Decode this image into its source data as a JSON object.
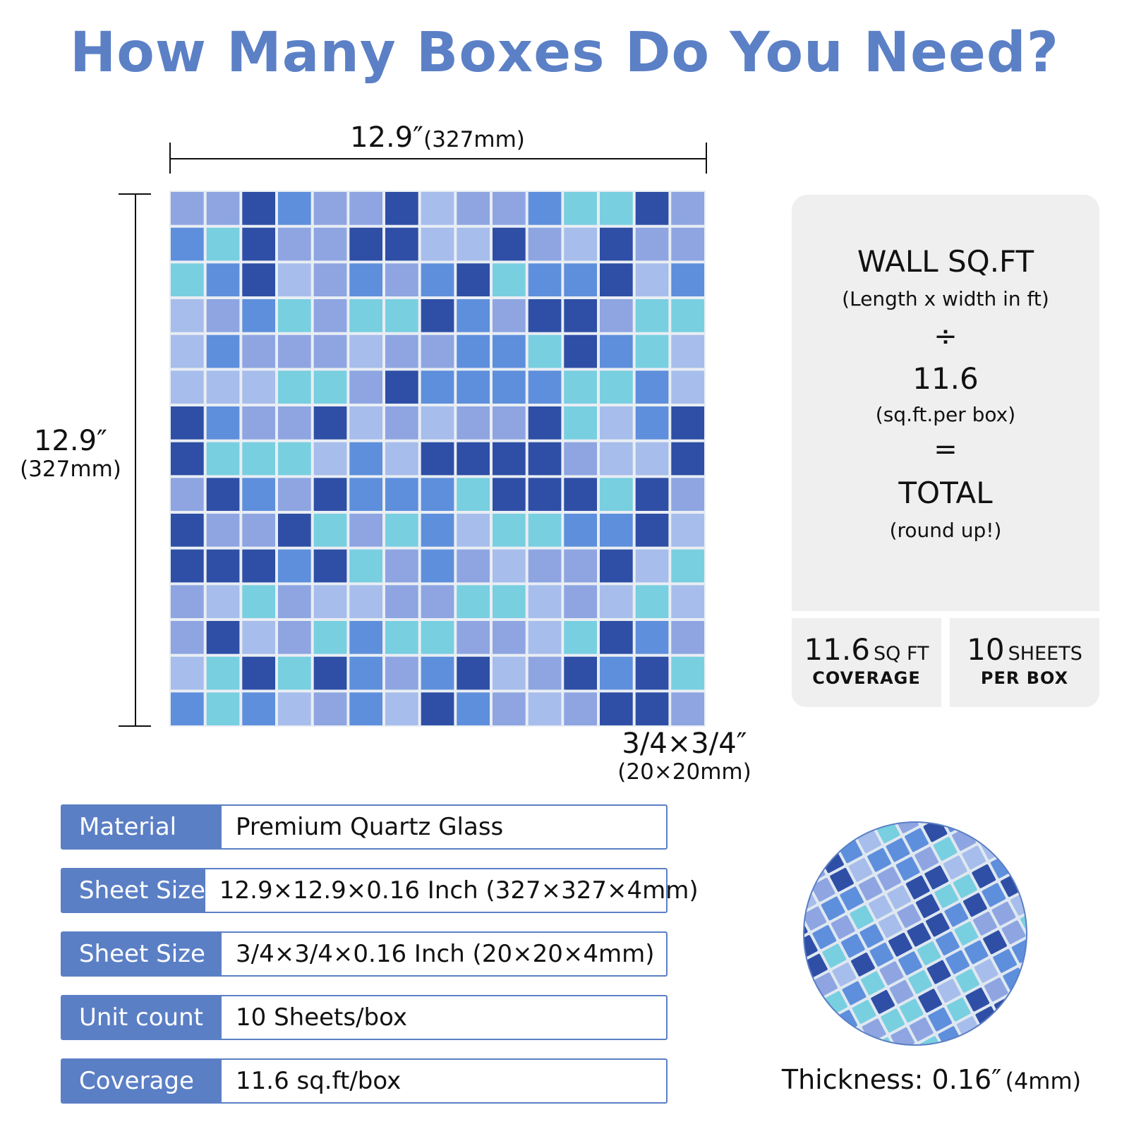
{
  "title": "How Many Boxes Do You Need?",
  "dimensions": {
    "width_main": "12.9″",
    "width_sub": "(327mm)",
    "height_main": "12.9″",
    "height_sub": "(327mm)",
    "tile_main": "3/4×3/4″",
    "tile_sub": "(20×20mm)"
  },
  "colors": {
    "title": "#5b80c6",
    "label_bg": "#5b7fc5",
    "card_bg": "#efefef",
    "tile_palette": [
      "#2f4fa6",
      "#5e8fdc",
      "#8ea5e2",
      "#78cfe0",
      "#a7bdeb"
    ]
  },
  "formula": {
    "line1": "WALL SQ.FT",
    "line1_sub": "(Length x width in ft)",
    "op1": "÷",
    "line2": "11.6",
    "line2_sub": "(sq.ft.per box)",
    "op2": "=",
    "line3": "TOTAL",
    "line3_sub": "(round up!)"
  },
  "stats": {
    "coverage_num": "11.6",
    "coverage_unit": "SQ FT",
    "coverage_label": "COVERAGE",
    "sheets_num": "10",
    "sheets_unit": "SHEETS",
    "sheets_label": "PER BOX"
  },
  "specs": [
    {
      "label": "Material",
      "value": "Premium Quartz Glass"
    },
    {
      "label": "Sheet Size",
      "value": "12.9×12.9×0.16 Inch (327×327×4mm)"
    },
    {
      "label": "Sheet Size",
      "value": "3/4×3/4×0.16 Inch (20×20×4mm)"
    },
    {
      "label": "Unit count",
      "value": "10 Sheets/box"
    },
    {
      "label": "Coverage",
      "value": "11.6 sq.ft/box"
    }
  ],
  "thickness": {
    "main": "Thickness: 0.16″",
    "sub": "(4mm)"
  }
}
